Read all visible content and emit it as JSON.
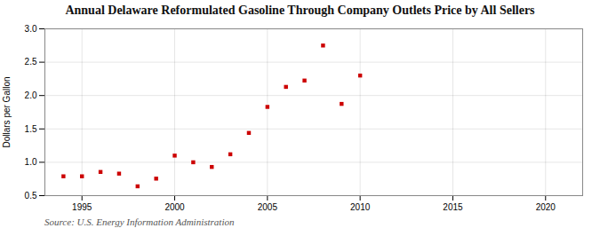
{
  "chart_data": {
    "type": "scatter",
    "title": "Annual Delaware Reformulated Gasoline Through Company Outlets Price by All Sellers",
    "ylabel": "Dollars per Gallon",
    "source": "Source: U.S. Energy Information Administration",
    "x": [
      1994,
      1995,
      1996,
      1997,
      1998,
      1999,
      2000,
      2001,
      2002,
      2003,
      2004,
      2005,
      2006,
      2007,
      2008,
      2009,
      2010
    ],
    "values": [
      0.79,
      0.79,
      0.855,
      0.83,
      0.64,
      0.755,
      1.1,
      1.0,
      0.93,
      1.12,
      1.44,
      1.83,
      2.13,
      2.225,
      2.75,
      1.875,
      2.3
    ],
    "color": "#cc0000",
    "marker": "square",
    "xlim": [
      1993,
      2022
    ],
    "ylim": [
      0.5,
      3.0
    ],
    "xticks": [
      1995,
      2000,
      2005,
      2010,
      2015,
      2020
    ],
    "yticks": [
      0.5,
      {
        "value": 1.0,
        "label": "1.0"
      },
      1.5,
      {
        "value": 2.0,
        "label": "2.0"
      },
      2.5,
      {
        "value": 3.0,
        "label": "3.0"
      }
    ],
    "grid": true
  }
}
